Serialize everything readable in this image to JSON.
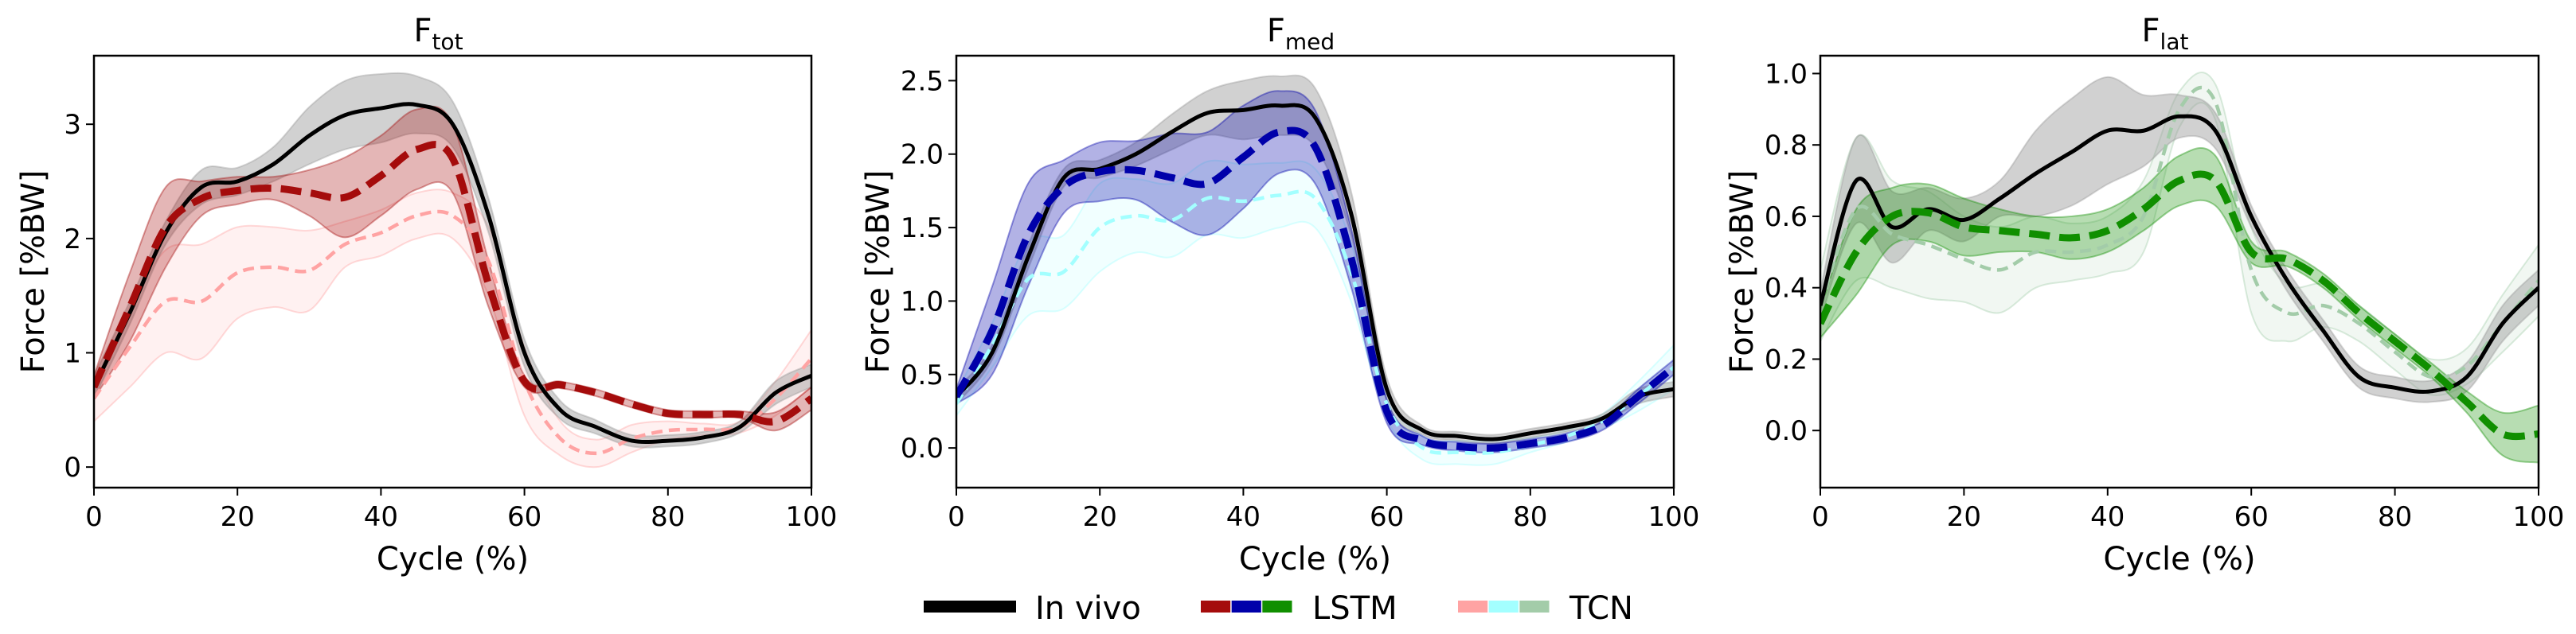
{
  "legend": {
    "items": [
      {
        "label": "In vivo",
        "colors": [
          "#000000"
        ]
      },
      {
        "label": "LSTM",
        "colors": [
          "#a50c0c",
          "#0000aa",
          "#108f00"
        ]
      },
      {
        "label": "TCN",
        "colors": [
          "#ffa3a3",
          "#a3ffff",
          "#a3cca9"
        ]
      }
    ]
  },
  "chart_data": [
    {
      "type": "line",
      "title": {
        "main": "F",
        "sub": "tot"
      },
      "xlabel": "Cycle (%)",
      "ylabel": "Force [%BW]",
      "xlim": [
        0,
        100
      ],
      "ylim": [
        -0.18,
        3.6
      ],
      "xticks": [
        0,
        20,
        40,
        60,
        80,
        100
      ],
      "yticks": [
        0,
        1,
        2,
        3
      ],
      "ytick_labels": [
        "0",
        "1",
        "2",
        "3"
      ],
      "x": [
        0,
        5,
        10,
        15,
        20,
        25,
        30,
        35,
        40,
        45,
        50,
        55,
        60,
        65,
        70,
        75,
        80,
        85,
        90,
        95,
        100
      ],
      "series": [
        {
          "name": "TCN",
          "color": "#ffa3a3",
          "style": "dashed-thin",
          "values": [
            0.6,
            1.05,
            1.45,
            1.45,
            1.7,
            1.75,
            1.72,
            1.95,
            2.05,
            2.2,
            2.2,
            1.8,
            0.75,
            0.25,
            0.12,
            0.25,
            0.32,
            0.33,
            0.35,
            0.6,
            0.95
          ],
          "band": [
            0.2,
            0.35,
            0.45,
            0.5,
            0.4,
            0.35,
            0.35,
            0.2,
            0.2,
            0.2,
            0.2,
            0.3,
            0.3,
            0.15,
            0.12,
            0.12,
            0.08,
            0.05,
            0.05,
            0.15,
            0.25
          ]
        },
        {
          "name": "In vivo",
          "color": "#000000",
          "style": "solid",
          "values": [
            0.7,
            1.35,
            2.05,
            2.45,
            2.5,
            2.65,
            2.9,
            3.08,
            3.14,
            3.17,
            3.0,
            2.2,
            1.0,
            0.5,
            0.35,
            0.23,
            0.23,
            0.26,
            0.35,
            0.65,
            0.8
          ],
          "band": [
            0.1,
            0.1,
            0.1,
            0.15,
            0.12,
            0.15,
            0.25,
            0.3,
            0.3,
            0.25,
            0.2,
            0.15,
            0.12,
            0.08,
            0.06,
            0.05,
            0.05,
            0.05,
            0.05,
            0.1,
            0.1
          ]
        },
        {
          "name": "LSTM",
          "color": "#a50c0c",
          "style": "dashed-thick",
          "values": [
            0.7,
            1.4,
            2.1,
            2.35,
            2.42,
            2.44,
            2.4,
            2.36,
            2.55,
            2.78,
            2.7,
            1.6,
            0.75,
            0.72,
            0.65,
            0.55,
            0.47,
            0.46,
            0.46,
            0.4,
            0.6
          ],
          "band": [
            0.1,
            0.3,
            0.35,
            0.15,
            0.12,
            0.1,
            0.2,
            0.35,
            0.35,
            0.35,
            0.3,
            0.2,
            0.05,
            0.03,
            0.03,
            0.03,
            0.03,
            0.03,
            0.03,
            0.08,
            0.1
          ]
        }
      ]
    },
    {
      "type": "line",
      "title": {
        "main": "F",
        "sub": "med"
      },
      "xlabel": "Cycle (%)",
      "ylabel": "Force [%BW]",
      "xlim": [
        0,
        100
      ],
      "ylim": [
        -0.27,
        2.67
      ],
      "xticks": [
        0,
        20,
        40,
        60,
        80,
        100
      ],
      "yticks": [
        0,
        0.5,
        1,
        1.5,
        2,
        2.5
      ],
      "ytick_labels": [
        "0.0",
        "0.5",
        "1.0",
        "1.5",
        "2.0",
        "2.5"
      ],
      "x": [
        0,
        5,
        10,
        15,
        20,
        25,
        30,
        35,
        40,
        45,
        50,
        55,
        60,
        65,
        70,
        75,
        80,
        85,
        90,
        95,
        100
      ],
      "series": [
        {
          "name": "TCN",
          "color": "#a3ffff",
          "style": "dashed-thin",
          "values": [
            0.3,
            0.7,
            1.15,
            1.2,
            1.5,
            1.58,
            1.55,
            1.7,
            1.68,
            1.72,
            1.7,
            1.2,
            0.3,
            0.0,
            -0.03,
            -0.03,
            0.02,
            0.08,
            0.18,
            0.35,
            0.55
          ],
          "band": [
            0.08,
            0.15,
            0.25,
            0.25,
            0.3,
            0.25,
            0.25,
            0.25,
            0.25,
            0.22,
            0.2,
            0.2,
            0.1,
            0.08,
            0.08,
            0.08,
            0.05,
            0.04,
            0.05,
            0.1,
            0.15
          ]
        },
        {
          "name": "In vivo",
          "color": "#000000",
          "style": "solid",
          "values": [
            0.35,
            0.65,
            1.3,
            1.84,
            1.9,
            2.0,
            2.15,
            2.28,
            2.3,
            2.33,
            2.25,
            1.6,
            0.4,
            0.12,
            0.08,
            0.06,
            0.1,
            0.14,
            0.2,
            0.35,
            0.4
          ],
          "band": [
            0.05,
            0.05,
            0.08,
            0.06,
            0.06,
            0.08,
            0.12,
            0.15,
            0.2,
            0.2,
            0.2,
            0.15,
            0.08,
            0.03,
            0.03,
            0.03,
            0.03,
            0.03,
            0.03,
            0.05,
            0.05
          ]
        },
        {
          "name": "LSTM",
          "color": "#0000aa",
          "style": "dashed-thick",
          "values": [
            0.35,
            0.8,
            1.45,
            1.78,
            1.88,
            1.89,
            1.84,
            1.8,
            1.98,
            2.15,
            2.05,
            1.3,
            0.25,
            0.05,
            0.01,
            0.0,
            0.03,
            0.07,
            0.15,
            0.35,
            0.55
          ],
          "band": [
            0.05,
            0.3,
            0.35,
            0.18,
            0.2,
            0.2,
            0.3,
            0.35,
            0.35,
            0.28,
            0.25,
            0.2,
            0.08,
            0.03,
            0.03,
            0.03,
            0.03,
            0.03,
            0.03,
            0.05,
            0.05
          ]
        }
      ]
    },
    {
      "type": "line",
      "title": {
        "main": "F",
        "sub": "lat"
      },
      "xlabel": "Cycle (%)",
      "ylabel": "Force [%BW]",
      "xlim": [
        0,
        100
      ],
      "ylim": [
        -0.16,
        1.05
      ],
      "xticks": [
        0,
        20,
        40,
        60,
        80,
        100
      ],
      "yticks": [
        0,
        0.2,
        0.4,
        0.6,
        0.8,
        1.0
      ],
      "ytick_labels": [
        "0.0",
        "0.2",
        "0.4",
        "0.6",
        "0.8",
        "1.0"
      ],
      "x": [
        0,
        5,
        10,
        15,
        20,
        25,
        30,
        35,
        40,
        45,
        50,
        55,
        60,
        65,
        70,
        75,
        80,
        85,
        90,
        95,
        100
      ],
      "series": [
        {
          "name": "TCN",
          "color": "#a3cca9",
          "style": "dashed-thin",
          "values": [
            0.35,
            0.62,
            0.55,
            0.52,
            0.48,
            0.45,
            0.5,
            0.5,
            0.52,
            0.6,
            0.9,
            0.92,
            0.45,
            0.33,
            0.35,
            0.3,
            0.22,
            0.15,
            0.18,
            0.3,
            0.42
          ],
          "band": [
            0.1,
            0.2,
            0.15,
            0.15,
            0.12,
            0.12,
            0.1,
            0.08,
            0.08,
            0.1,
            0.05,
            0.05,
            0.12,
            0.08,
            0.06,
            0.05,
            0.05,
            0.05,
            0.05,
            0.08,
            0.1
          ]
        },
        {
          "name": "In vivo",
          "color": "#000000",
          "style": "solid",
          "values": [
            0.35,
            0.7,
            0.57,
            0.62,
            0.59,
            0.65,
            0.72,
            0.78,
            0.84,
            0.84,
            0.88,
            0.84,
            0.6,
            0.42,
            0.28,
            0.15,
            0.12,
            0.11,
            0.15,
            0.3,
            0.4
          ],
          "band": [
            0.04,
            0.12,
            0.1,
            0.06,
            0.06,
            0.05,
            0.12,
            0.15,
            0.15,
            0.1,
            0.06,
            0.05,
            0.03,
            0.03,
            0.03,
            0.03,
            0.03,
            0.03,
            0.04,
            0.05,
            0.05
          ]
        },
        {
          "name": "LSTM",
          "color": "#108f00",
          "style": "dashed-thick",
          "values": [
            0.3,
            0.5,
            0.6,
            0.61,
            0.57,
            0.56,
            0.55,
            0.54,
            0.56,
            0.62,
            0.7,
            0.7,
            0.5,
            0.48,
            0.42,
            0.33,
            0.25,
            0.17,
            0.08,
            -0.01,
            -0.01
          ],
          "band": [
            0.04,
            0.12,
            0.08,
            0.08,
            0.08,
            0.06,
            0.05,
            0.06,
            0.06,
            0.06,
            0.07,
            0.07,
            0.03,
            0.02,
            0.02,
            0.02,
            0.02,
            0.02,
            0.03,
            0.06,
            0.08
          ]
        }
      ]
    }
  ]
}
